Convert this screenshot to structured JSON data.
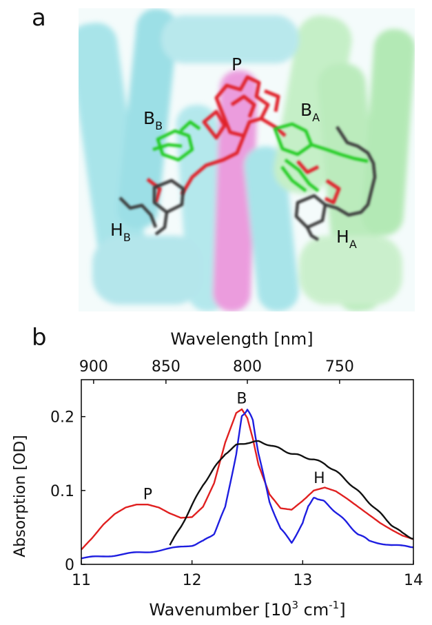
{
  "panel_a": {
    "label": "a",
    "cofactor_labels": {
      "p": "P",
      "bb_main": "B",
      "bb_sub": "B",
      "ba_main": "B",
      "ba_sub": "A",
      "hb_main": "H",
      "hb_sub": "B",
      "ha_main": "H",
      "ha_sub": "A"
    },
    "colors": {
      "special_pair": "#e0202a",
      "bacteriochlorophyll": "#22cc22",
      "bacteriopheophytin": "#3a3a3a",
      "helix_cyan": "#6fd3dc",
      "helix_green": "#a8e6a8",
      "helix_magenta": "#e060c8"
    }
  },
  "panel_b": {
    "label": "b",
    "top_axis_label": "Wavelength [nm]",
    "top_ticks": [
      "900",
      "850",
      "800",
      "750"
    ],
    "ylabel": "Absorption [OD]",
    "xlabel_main": "Wavenumber [10",
    "xlabel_exp1": "3",
    "xlabel_mid": " cm",
    "xlabel_exp2": "-1",
    "xlabel_end": "]",
    "peak_labels": {
      "p": "P",
      "b": "B",
      "h": "H"
    },
    "x_ticks": [
      "11",
      "12",
      "13",
      "14"
    ],
    "y_ticks": [
      "0",
      "0.1",
      "0.2"
    ]
  },
  "chart_data": {
    "type": "line",
    "xlabel": "Wavenumber [10^3 cm^-1]",
    "ylabel": "Absorption [OD]",
    "secondary_xlabel": "Wavelength [nm]",
    "xlim": [
      11,
      14
    ],
    "ylim": [
      0,
      0.25
    ],
    "secondary_x_ticks_nm": [
      900,
      850,
      800,
      750
    ],
    "annotations": [
      {
        "text": "P",
        "x": 11.6,
        "y": 0.088
      },
      {
        "text": "B",
        "x": 12.45,
        "y": 0.218
      },
      {
        "text": "H",
        "x": 13.15,
        "y": 0.11
      }
    ],
    "series": [
      {
        "color": "#e02020",
        "x": [
          11.0,
          11.1,
          11.2,
          11.3,
          11.4,
          11.5,
          11.6,
          11.7,
          11.8,
          11.9,
          12.0,
          12.1,
          12.2,
          12.3,
          12.4,
          12.45,
          12.5,
          12.55,
          12.6,
          12.7,
          12.8,
          12.9,
          13.0,
          13.1,
          13.2,
          13.3,
          13.4,
          13.5,
          13.6,
          13.7,
          13.8,
          13.9,
          14.0
        ],
        "y": [
          0.02,
          0.036,
          0.054,
          0.068,
          0.077,
          0.081,
          0.081,
          0.077,
          0.069,
          0.063,
          0.064,
          0.078,
          0.11,
          0.165,
          0.205,
          0.21,
          0.198,
          0.17,
          0.135,
          0.095,
          0.076,
          0.074,
          0.086,
          0.1,
          0.104,
          0.099,
          0.089,
          0.078,
          0.067,
          0.056,
          0.047,
          0.039,
          0.034
        ]
      },
      {
        "color": "#1e1ee0",
        "x": [
          11.0,
          11.2,
          11.4,
          11.6,
          11.8,
          12.0,
          12.1,
          12.2,
          12.3,
          12.4,
          12.45,
          12.5,
          12.55,
          12.6,
          12.7,
          12.8,
          12.9,
          13.0,
          13.05,
          13.1,
          13.15,
          13.2,
          13.3,
          13.4,
          13.5,
          13.6,
          13.8,
          14.0
        ],
        "y": [
          0.008,
          0.011,
          0.014,
          0.017,
          0.021,
          0.026,
          0.031,
          0.042,
          0.077,
          0.15,
          0.2,
          0.21,
          0.195,
          0.15,
          0.085,
          0.048,
          0.03,
          0.055,
          0.08,
          0.089,
          0.089,
          0.084,
          0.071,
          0.056,
          0.041,
          0.032,
          0.026,
          0.023
        ]
      },
      {
        "color": "#111111",
        "x": [
          11.8,
          11.9,
          12.0,
          12.1,
          12.2,
          12.3,
          12.4,
          12.5,
          12.6,
          12.7,
          12.8,
          12.9,
          13.0,
          13.1,
          13.2,
          13.3,
          13.4,
          13.5,
          13.6,
          13.7,
          13.8,
          13.9,
          14.0
        ],
        "y": [
          0.026,
          0.051,
          0.08,
          0.108,
          0.13,
          0.15,
          0.161,
          0.165,
          0.166,
          0.162,
          0.156,
          0.15,
          0.146,
          0.142,
          0.136,
          0.126,
          0.113,
          0.099,
          0.084,
          0.069,
          0.054,
          0.042,
          0.035
        ]
      }
    ]
  }
}
